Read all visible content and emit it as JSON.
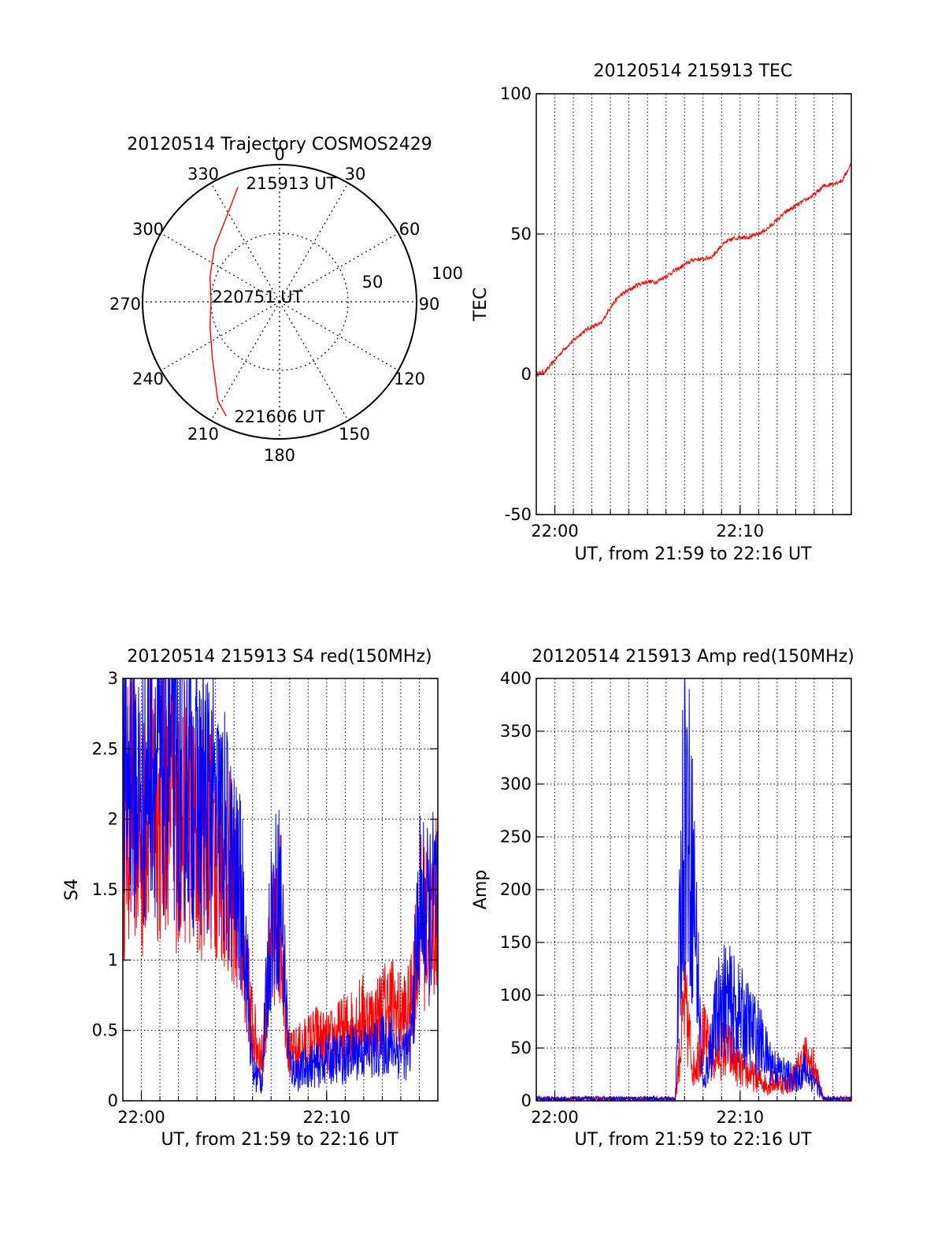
{
  "chart_data": [
    {
      "type": "scatter",
      "subtype": "polar-trajectory",
      "title": "20120514 Trajectory COSMOS2429",
      "azimuth_labels": [
        "0",
        "30",
        "60",
        "90",
        "120",
        "150",
        "180",
        "210",
        "240",
        "270",
        "300",
        "330"
      ],
      "radial_labels": [
        "50",
        "100"
      ],
      "elevation_range": [
        0,
        100
      ],
      "annotations": [
        "215913 UT",
        "220751 UT",
        "221606 UT"
      ],
      "series": [
        {
          "name": "",
          "color": "#ff0000",
          "points_az_el": [
            [
              340,
              11
            ],
            [
              330,
              25
            ],
            [
              310,
              38
            ],
            [
              290,
              46
            ],
            [
              270,
              50
            ],
            [
              250,
              46
            ],
            [
              230,
              36
            ],
            [
              212,
              15
            ],
            [
              205,
              8
            ]
          ]
        }
      ]
    },
    {
      "type": "line",
      "title": "20120514 215913 TEC",
      "xlabel": "UT, from 21:59 to 22:16 UT",
      "ylabel": "TEC",
      "x_ticks": [
        "22:00",
        "22:10"
      ],
      "y_ticks": [
        "-50",
        "0",
        "50",
        "100"
      ],
      "xlim_minutes_since_2159": [
        0,
        17
      ],
      "ylim": [
        -50,
        100
      ],
      "grid": true,
      "series": [
        {
          "name": "",
          "color": "#ff0000",
          "x_minutes_since_2159": [
            0,
            0.5,
            1,
            1.5,
            2,
            2.5,
            3,
            3.5,
            4,
            4.5,
            5,
            5.5,
            6,
            6.5,
            7,
            7.5,
            8,
            8.5,
            9,
            9.5,
            10,
            10.5,
            11,
            11.5,
            12,
            12.5,
            13,
            13.5,
            14,
            14.5,
            15,
            15.5,
            16,
            16.5,
            17
          ],
          "values": [
            0,
            1,
            5,
            9,
            12,
            15,
            17,
            18,
            24,
            28,
            30,
            32,
            33,
            33,
            35,
            37,
            39,
            41,
            41,
            42,
            46,
            48,
            49,
            49,
            50,
            52,
            55,
            58,
            60,
            62,
            64,
            67,
            68,
            69,
            75
          ]
        }
      ]
    },
    {
      "type": "line",
      "title": "20120514 215913 S4 red(150MHz)",
      "xlabel": "UT, from 21:59 to 22:16 UT",
      "ylabel": "S4",
      "x_ticks": [
        "22:00",
        "22:10"
      ],
      "y_ticks": [
        "0",
        "0.5",
        "1",
        "1.5",
        "2",
        "2.5",
        "3"
      ],
      "xlim_minutes_since_2159": [
        0,
        17
      ],
      "ylim": [
        0,
        3
      ],
      "grid": true,
      "series": [
        {
          "name": "",
          "color": "#ff0000",
          "x_minutes_since_2159": [
            0,
            0.5,
            1,
            1.5,
            2,
            2.5,
            3,
            3.5,
            4,
            4.5,
            5,
            5.5,
            6,
            6.5,
            7,
            7.5,
            8,
            8.5,
            9,
            9.5,
            10,
            10.5,
            11,
            11.5,
            12,
            12.5,
            13,
            13.5,
            14,
            14.5,
            15,
            15.5,
            16,
            16.5,
            17
          ],
          "values": [
            1.8,
            2.2,
            1.7,
            2.4,
            2.0,
            2.3,
            1.9,
            2.1,
            1.8,
            2.0,
            1.9,
            1.7,
            1.5,
            1.1,
            0.5,
            0.3,
            1.1,
            1.3,
            0.3,
            0.35,
            0.4,
            0.45,
            0.4,
            0.45,
            0.5,
            0.55,
            0.6,
            0.55,
            0.65,
            0.7,
            0.6,
            0.65,
            1.3,
            1.2,
            1.4
          ]
        },
        {
          "name": "",
          "color": "#0000ff",
          "x_minutes_since_2159": [
            0,
            0.5,
            1,
            1.5,
            2,
            2.5,
            3,
            3.5,
            4,
            4.5,
            5,
            5.5,
            6,
            6.5,
            7,
            7.5,
            8,
            8.5,
            9,
            9.5,
            10,
            10.5,
            11,
            11.5,
            12,
            12.5,
            13,
            13.5,
            14,
            14.5,
            15,
            15.5,
            16,
            16.5,
            17
          ],
          "values": [
            2.2,
            2.4,
            2.1,
            2.6,
            2.3,
            2.5,
            2.2,
            2.4,
            2.1,
            2.2,
            2.0,
            1.9,
            1.6,
            1.4,
            0.2,
            0.15,
            1.3,
            1.5,
            0.25,
            0.2,
            0.25,
            0.25,
            0.3,
            0.3,
            0.3,
            0.35,
            0.35,
            0.35,
            0.4,
            0.4,
            0.35,
            0.35,
            1.4,
            1.3,
            1.5
          ]
        }
      ]
    },
    {
      "type": "line",
      "title": "20120514 215913 Amp red(150MHz)",
      "xlabel": "UT, from 21:59 to 22:16 UT",
      "ylabel": "Amp",
      "x_ticks": [
        "22:00",
        "22:10"
      ],
      "y_ticks": [
        "0",
        "50",
        "100",
        "150",
        "200",
        "250",
        "300",
        "350",
        "400"
      ],
      "xlim_minutes_since_2159": [
        0,
        17
      ],
      "ylim": [
        0,
        400
      ],
      "grid": true,
      "series": [
        {
          "name": "",
          "color": "#ff0000",
          "x_minutes_since_2159": [
            0,
            1,
            2,
            3,
            4,
            5,
            6,
            7,
            7.5,
            8,
            8.5,
            9,
            9.5,
            10,
            10.5,
            11,
            11.5,
            12,
            12.5,
            13,
            13.5,
            14,
            14.5,
            15,
            15.5,
            16,
            16.5,
            17
          ],
          "values": [
            2,
            2,
            2,
            2,
            2,
            2,
            2,
            2,
            2,
            90,
            30,
            60,
            40,
            50,
            45,
            30,
            25,
            20,
            15,
            20,
            15,
            25,
            40,
            30,
            2,
            2,
            2,
            2
          ]
        },
        {
          "name": "",
          "color": "#0000ff",
          "x_minutes_since_2159": [
            0,
            1,
            2,
            3,
            4,
            5,
            6,
            7,
            7.5,
            8,
            8.5,
            9,
            9.5,
            10,
            10.5,
            11,
            11.5,
            12,
            12.5,
            13,
            13.5,
            14,
            14.5,
            15,
            15.5,
            16,
            16.5,
            17
          ],
          "values": [
            2,
            2,
            2,
            2,
            2,
            2,
            2,
            2,
            2,
            300,
            200,
            10,
            60,
            100,
            90,
            80,
            70,
            60,
            40,
            30,
            25,
            20,
            30,
            20,
            2,
            2,
            2,
            2
          ]
        }
      ]
    }
  ]
}
